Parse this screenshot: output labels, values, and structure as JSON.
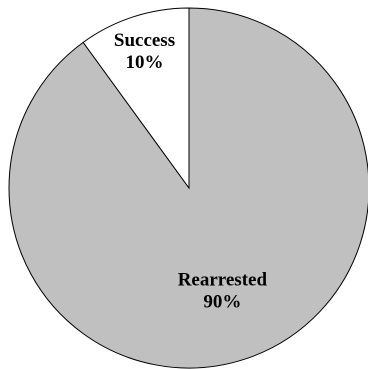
{
  "chart_data": {
    "type": "pie",
    "title": "",
    "start_angle_deg": 0,
    "direction": "clockwise",
    "slices": [
      {
        "label": "Rearrested",
        "value": 90,
        "percent_label": "90%",
        "color": "#c0c0c0"
      },
      {
        "label": "Success",
        "value": 10,
        "percent_label": "10%",
        "color": "#ffffff"
      }
    ],
    "outline_color": "#000000"
  }
}
